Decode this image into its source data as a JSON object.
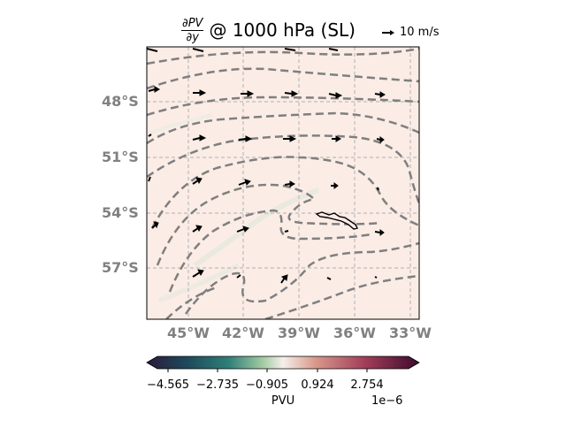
{
  "title": {
    "numerator": "∂PV",
    "denominator": "∂y",
    "suffix": "@ 1000 hPa (SL)"
  },
  "vector_key": {
    "label": "10 m/s",
    "speed": 10
  },
  "map": {
    "lat_labels": [
      "48°S",
      "51°S",
      "54°S",
      "57°S"
    ],
    "lon_labels": [
      "45°W",
      "42°W",
      "39°W",
      "36°W",
      "33°W"
    ],
    "lon_range": [
      -47.2,
      -32.6
    ],
    "lat_range": [
      -59.5,
      -45.1
    ],
    "gridlines": true,
    "feature": "South Georgia coastline"
  },
  "colorbar": {
    "label": "PVU",
    "exponent": "1e−6",
    "ticks": [
      "−4.565",
      "−2.735",
      "−0.905",
      "0.924",
      "2.754"
    ],
    "cmap": [
      "#2a1a3a",
      "#1e4a5c",
      "#2f7f78",
      "#9ec7a0",
      "#f4f0ea",
      "#d8978a",
      "#a23e5a",
      "#3d0a2c"
    ]
  },
  "colors": {
    "contour": "#7f7f7f",
    "grid": "#b0b0b0",
    "field": "#fbece6",
    "vector": "#000000"
  }
}
